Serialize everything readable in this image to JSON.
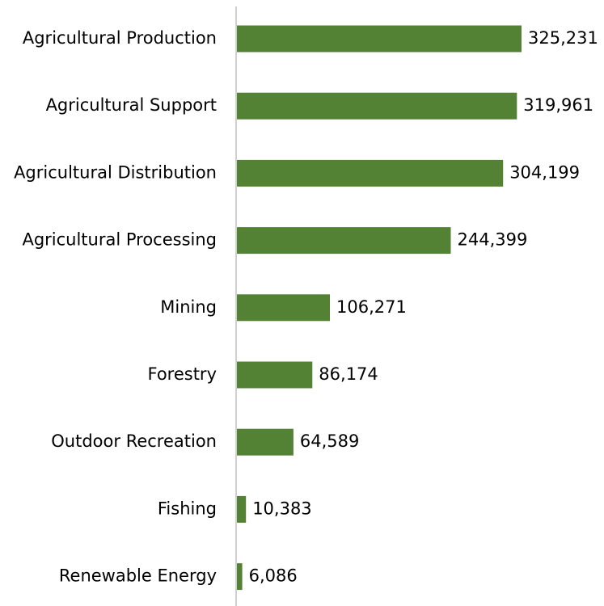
{
  "chart_data": {
    "type": "bar",
    "orientation": "horizontal",
    "title": "",
    "xlabel": "",
    "ylabel": "",
    "categories": [
      "Agricultural Production",
      "Agricultural Support",
      "Agricultural Distribution",
      "Agricultural Processing",
      "Mining",
      "Forestry",
      "Outdoor Recreation",
      "Fishing",
      "Renewable Energy"
    ],
    "values": [
      325231,
      319961,
      304199,
      244399,
      106271,
      86174,
      64589,
      10383,
      6086
    ],
    "value_labels": [
      "325,231",
      "319,961",
      "304,199",
      "244,399",
      "106,271",
      "86,174",
      "64,589",
      "10,383",
      "6,086"
    ],
    "xlim": [
      0,
      325231
    ],
    "grid": false,
    "legend": "none",
    "bar_color": "#548235",
    "axis_color": "#d0d0d0"
  }
}
